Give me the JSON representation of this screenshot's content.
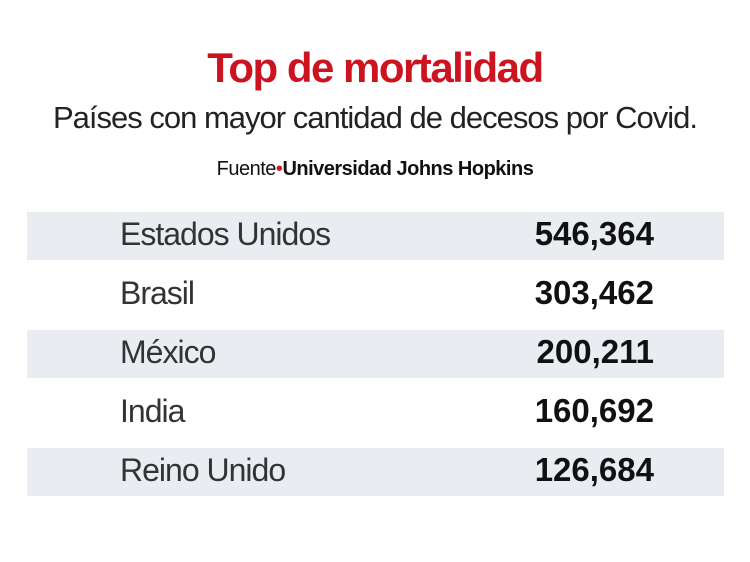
{
  "title": "Top de mortalidad",
  "subtitle": "Países con mayor cantidad de decesos por Covid.",
  "source": {
    "label": "Fuente",
    "separator": "•",
    "name": "Universidad Johns Hopkins"
  },
  "colors": {
    "title": "#cc1420",
    "row_shade": "#e9edf1"
  },
  "chart_data": {
    "type": "table",
    "title": "Top de mortalidad",
    "subtitle": "Países con mayor cantidad de decesos por Covid.",
    "rows": [
      {
        "country": "Estados Unidos",
        "value": "546,364"
      },
      {
        "country": "Brasil",
        "value": "303,462"
      },
      {
        "country": "México",
        "value": "200,211"
      },
      {
        "country": "India",
        "value": "160,692"
      },
      {
        "country": "Reino Unido",
        "value": "126,684"
      }
    ]
  }
}
